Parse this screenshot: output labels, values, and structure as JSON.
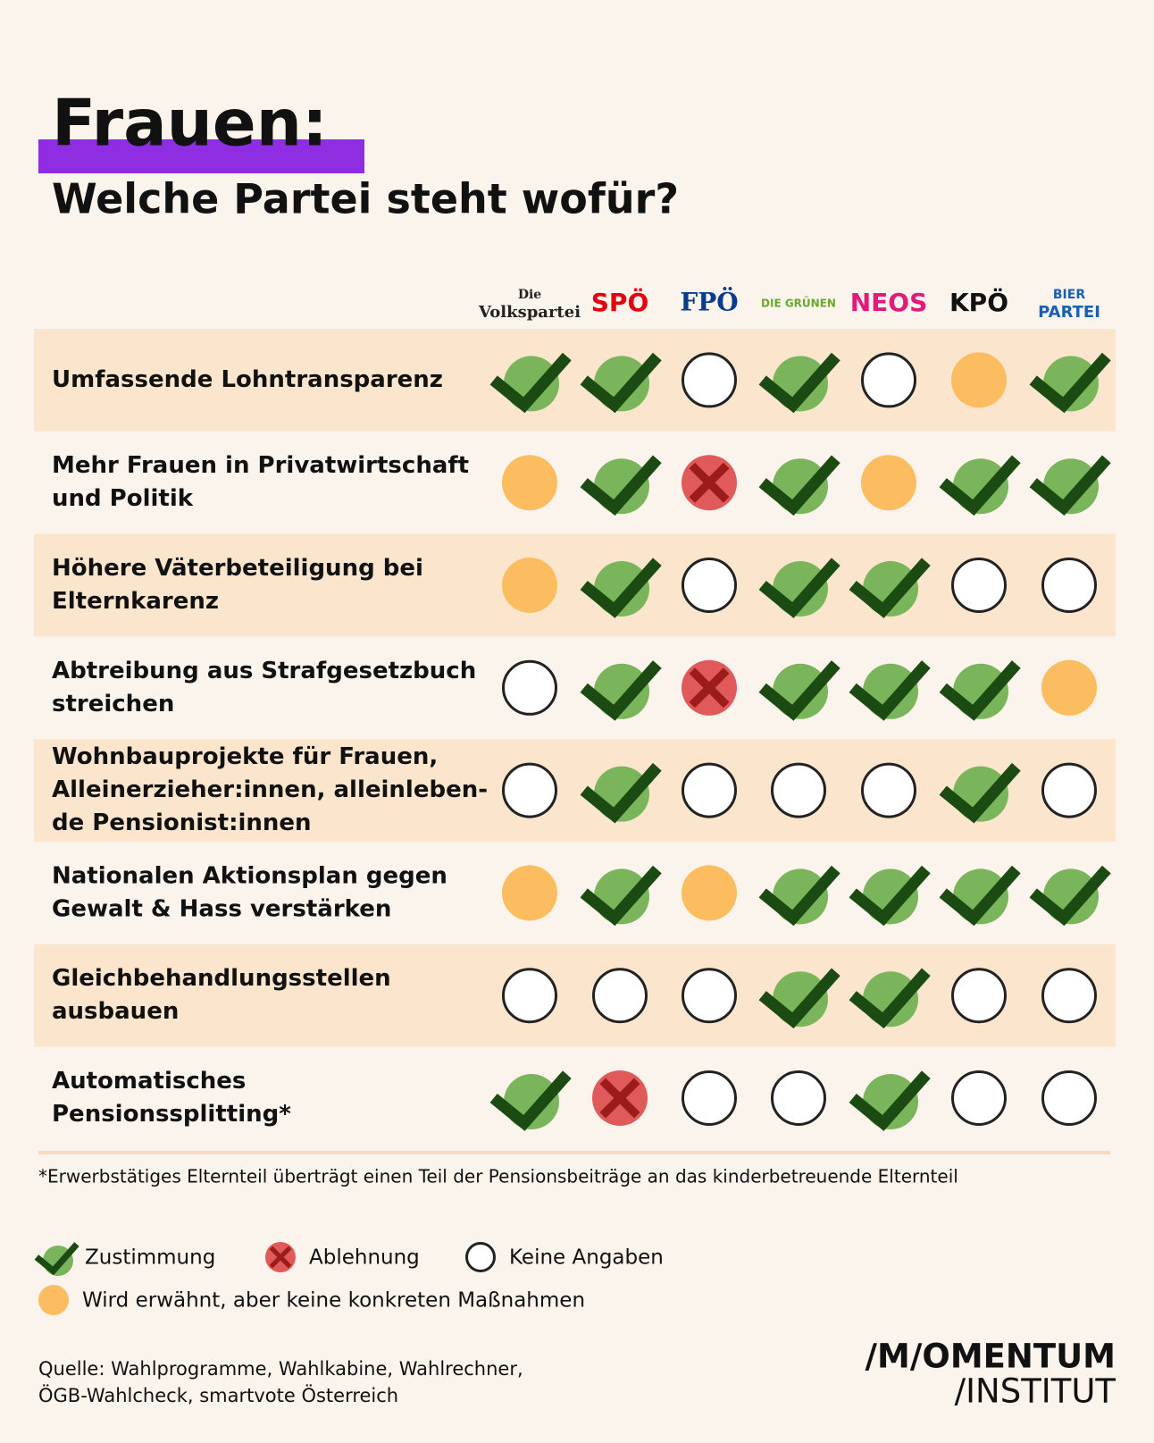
{
  "header": {
    "title": "Frauen:",
    "subtitle": "Welche Partei steht wofür?"
  },
  "parties": [
    [
      "Die",
      "Volkspartei"
    ],
    [
      "SPÖ"
    ],
    [
      "FPÖ"
    ],
    [
      "DIE GRÜNEN"
    ],
    [
      "NEOS"
    ],
    [
      "KPÖ"
    ],
    [
      "BIER",
      "PARTEI"
    ]
  ],
  "party_colors": [
    "#222222",
    "#e3000f",
    "#0a3c8c",
    "#6aa82e",
    "#e4197b",
    "#111111",
    "#1a5fb4"
  ],
  "rows": [
    {
      "label": [
        "Umfassende Lohntransparenz"
      ],
      "status": [
        "yes",
        "yes",
        "none",
        "yes",
        "none",
        "mentioned",
        "yes"
      ]
    },
    {
      "label": [
        "Mehr Frauen in Privatwirtschaft",
        "und Politik"
      ],
      "status": [
        "mentioned",
        "yes",
        "no",
        "yes",
        "mentioned",
        "yes",
        "yes"
      ]
    },
    {
      "label": [
        "Höhere Väterbeteiligung bei",
        "Elternkarenz"
      ],
      "status": [
        "mentioned",
        "yes",
        "none",
        "yes",
        "yes",
        "none",
        "none"
      ]
    },
    {
      "label": [
        "Abtreibung aus Strafgesetzbuch",
        "streichen"
      ],
      "status": [
        "none",
        "yes",
        "no",
        "yes",
        "yes",
        "yes",
        "mentioned"
      ]
    },
    {
      "label": [
        "Wohnbauprojekte für Frauen,",
        " Alleinerzieher:innen, alleinleben-",
        "de Pensionist:innen"
      ],
      "status": [
        "none",
        "yes",
        "none",
        "none",
        "none",
        "yes",
        "none"
      ]
    },
    {
      "label": [
        "Nationalen Aktionsplan gegen",
        "Gewalt & Hass verstärken"
      ],
      "status": [
        "mentioned",
        "yes",
        "mentioned",
        "yes",
        "yes",
        "yes",
        "yes"
      ]
    },
    {
      "label": [
        "Gleichbehandlungsstellen",
        "ausbauen"
      ],
      "status": [
        "none",
        "none",
        "none",
        "yes",
        "yes",
        "none",
        "none"
      ]
    },
    {
      "label": [
        "Automatisches",
        "Pensionssplitting*"
      ],
      "status": [
        "yes",
        "no",
        "none",
        "none",
        "yes",
        "none",
        "none"
      ]
    }
  ],
  "footnote": "*Erwerbstätiges Elternteil überträgt einen Teil der Pensionsbeiträge an das kinderbetreuende Elternteil",
  "legend": [
    {
      "status": "yes",
      "label": "Zustimmung"
    },
    {
      "status": "no",
      "label": "Ablehnung"
    },
    {
      "status": "none",
      "label": "Keine Angaben"
    },
    {
      "status": "mentioned",
      "label": "Wird erwähnt, aber keine konkreten Maßnahmen"
    }
  ],
  "source": [
    "Quelle: Wahlprogramme, Wahlkabine, Wahlrechner,",
    "ÖGB-Wahlcheck, smartvote Österreich"
  ],
  "brand": [
    "/M/OMENTUM",
    "/INSTITUT"
  ]
}
